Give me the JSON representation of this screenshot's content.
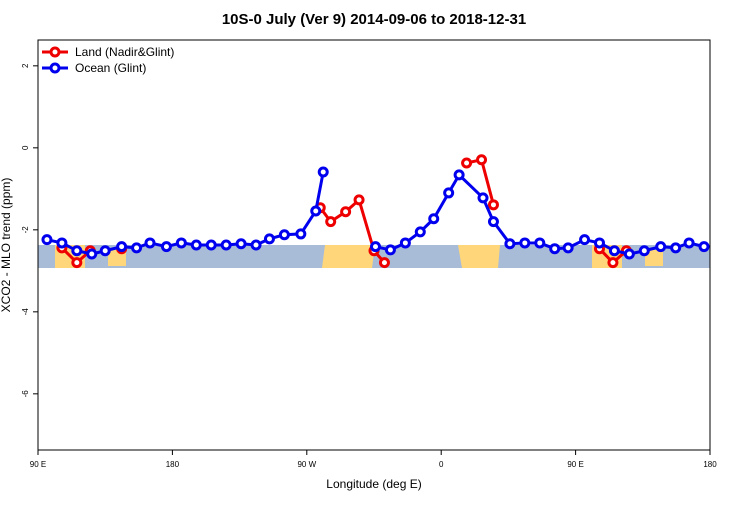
{
  "chart_data": {
    "type": "line",
    "title": "10S-0 July (Ver 9)   2014-09-06 to 2018-12-31",
    "x_label": "Longitude (deg E)",
    "y_label": "XCO2 - MLO trend (ppm)",
    "xlim": [
      90,
      540
    ],
    "xticks": [
      {
        "value": 90,
        "label": "90 E"
      },
      180,
      {
        "value": 270,
        "label": "90 W"
      },
      {
        "value": 360,
        "label": "0"
      },
      {
        "value": 450,
        "label": "90 E"
      },
      {
        "value": 540,
        "label": "180"
      }
    ],
    "ylim": [
      -7.37,
      2.63
    ],
    "yticks": [
      2,
      0,
      -2,
      -4,
      -6
    ],
    "legend": "top-left",
    "series": [
      {
        "name": "Land (Nadir&Glint)",
        "color": "#ee0000",
        "x": [
          106,
          116,
          125,
          null,
          146,
          null,
          279,
          286,
          296,
          305,
          315,
          322,
          null,
          377,
          387,
          395,
          null,
          466,
          475,
          484
        ],
        "values": [
          -2.44,
          -2.8,
          -2.51,
          null,
          -2.46,
          null,
          -1.46,
          -1.8,
          -1.56,
          -1.27,
          -2.51,
          -2.8,
          null,
          -0.37,
          -0.29,
          -1.39,
          null,
          -2.46,
          -2.8,
          -2.51
        ]
      },
      {
        "name": "Ocean (Glint)",
        "color": "#0000ee",
        "x": [
          96,
          106,
          116,
          126,
          135,
          146,
          156,
          165,
          176,
          186,
          196,
          206,
          216,
          226,
          236,
          245,
          255,
          266,
          276,
          281,
          null,
          316,
          326,
          336,
          346,
          355,
          365,
          372,
          388,
          395,
          406,
          416,
          426,
          436,
          445,
          456,
          466,
          476,
          486,
          496,
          507,
          517,
          526,
          536
        ],
        "values": [
          -2.24,
          -2.32,
          -2.51,
          -2.59,
          -2.51,
          -2.41,
          -2.44,
          -2.32,
          -2.41,
          -2.32,
          -2.37,
          -2.37,
          -2.37,
          -2.34,
          -2.37,
          -2.22,
          -2.12,
          -2.1,
          -1.54,
          -0.59,
          null,
          -2.41,
          -2.49,
          -2.32,
          -2.05,
          -1.73,
          -1.1,
          -0.66,
          -1.22,
          -1.8,
          -2.34,
          -2.32,
          -2.32,
          -2.46,
          -2.44,
          -2.24,
          -2.32,
          -2.51,
          -2.59,
          -2.51,
          -2.41,
          -2.44,
          -2.32,
          -2.41
        ]
      }
    ]
  }
}
